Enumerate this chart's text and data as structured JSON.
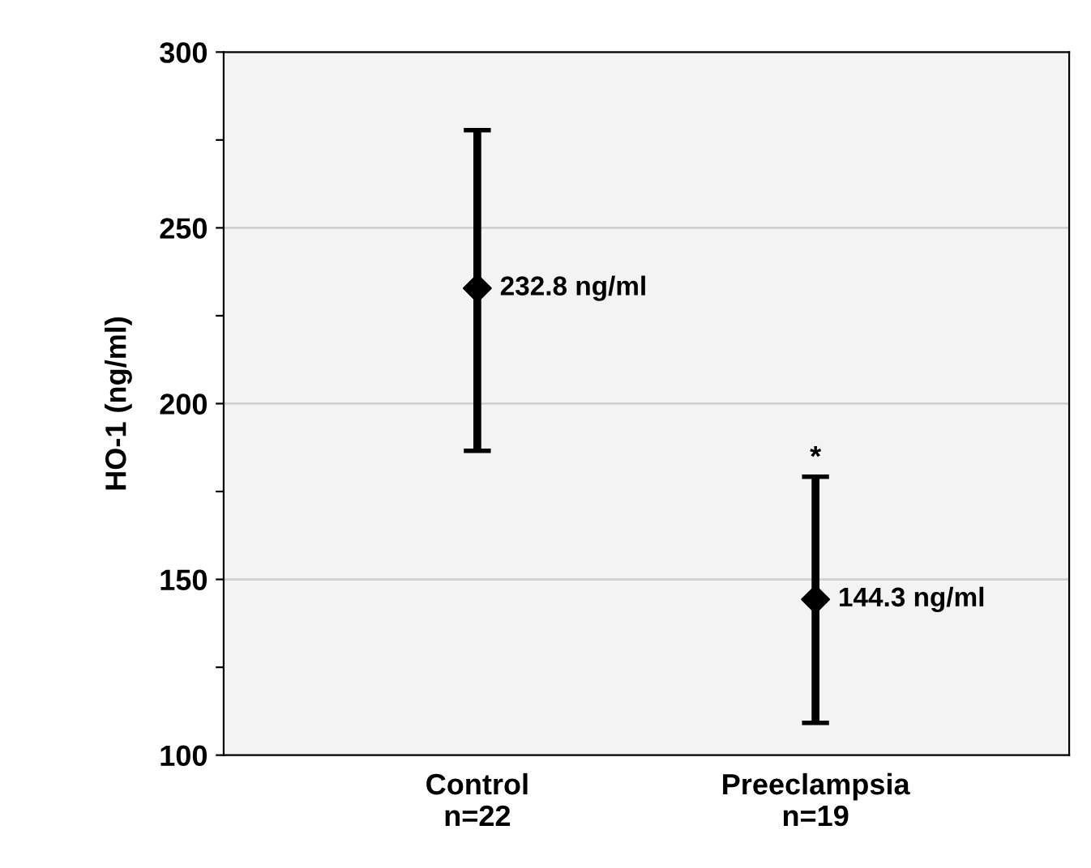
{
  "chart_data": {
    "type": "scatter",
    "ylabel": "HO-1 (ng/ml)",
    "categories": [
      "Control\nn=22",
      "Preeclampsia\nn=19"
    ],
    "values": [
      232.8,
      144.3
    ],
    "errors": [
      [
        186.6,
        277.8
      ],
      [
        109.2,
        179.2
      ]
    ],
    "value_labels": [
      "232.8 ng/ml",
      "144.3 ng/ml"
    ],
    "color": "#000000",
    "marker": "diamond",
    "ylim": [
      100,
      300
    ],
    "yticks": [
      100,
      {
        "value": 125,
        "label": null
      },
      150,
      {
        "value": 175,
        "label": null
      },
      200,
      {
        "value": 225,
        "label": null
      },
      250,
      {
        "value": 275,
        "label": null
      },
      300
    ],
    "grid": "y",
    "annotations": [
      "*"
    ]
  }
}
